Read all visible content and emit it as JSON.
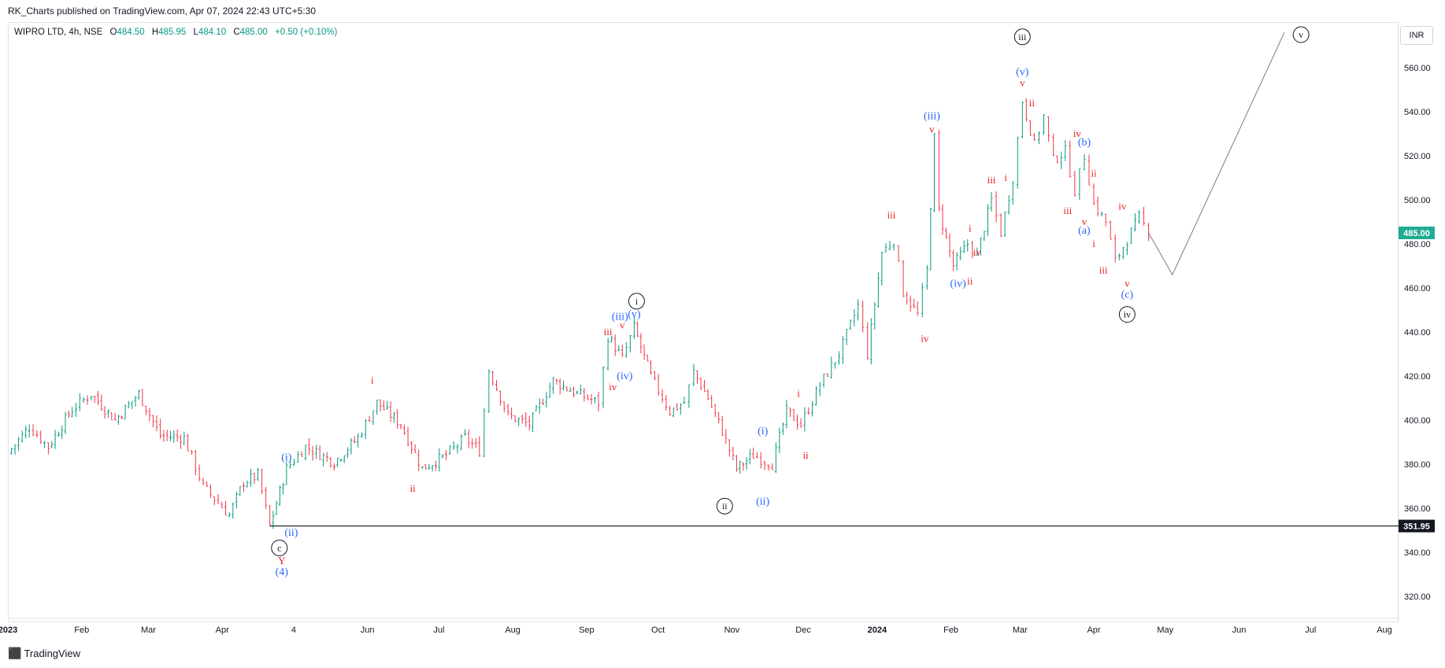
{
  "header": {
    "publisher": "RK_Charts published on TradingView.com, Apr 07, 2024 22:43 UTC+5:30"
  },
  "symbol": {
    "name": "WIPRO LTD, 4h, NSE",
    "open_label": "O",
    "open": "484.50",
    "high_label": "H",
    "high": "485.95",
    "low_label": "L",
    "low": "484.10",
    "close_label": "C",
    "close": "485.00",
    "change": "+0.50 (+0.10%)"
  },
  "currency": "INR",
  "footer": {
    "brand": "TradingView",
    "logo_icon": "tradingview-logo-icon"
  },
  "colors": {
    "up": "#089981",
    "down": "#f23645",
    "wave_red": "#e91e1e",
    "wave_blue": "#2962ff",
    "wave_black": "#131722",
    "last_price_bg": "#22ab94",
    "support_bg": "#131722"
  },
  "chart_data": {
    "type": "candlestick",
    "ylim": [
      310,
      580
    ],
    "y_ticks": [
      320,
      340,
      360,
      380,
      400,
      420,
      440,
      460,
      480,
      500,
      520,
      540,
      560
    ],
    "x_ticks": [
      {
        "date": "2023-01-01",
        "label": "2023",
        "bold": true
      },
      {
        "date": "2023-02-01",
        "label": "Feb"
      },
      {
        "date": "2023-03-01",
        "label": "Mar"
      },
      {
        "date": "2023-04-01",
        "label": "Apr"
      },
      {
        "date": "2023-05-01",
        "label": "4"
      },
      {
        "date": "2023-06-01",
        "label": "Jun"
      },
      {
        "date": "2023-07-01",
        "label": "Jul"
      },
      {
        "date": "2023-08-01",
        "label": "Aug"
      },
      {
        "date": "2023-09-01",
        "label": "Sep"
      },
      {
        "date": "2023-10-01",
        "label": "Oct"
      },
      {
        "date": "2023-11-01",
        "label": "Nov"
      },
      {
        "date": "2023-12-01",
        "label": "Dec"
      },
      {
        "date": "2024-01-01",
        "label": "2024",
        "bold": true
      },
      {
        "date": "2024-02-01",
        "label": "Feb"
      },
      {
        "date": "2024-03-01",
        "label": "Mar"
      },
      {
        "date": "2024-04-01",
        "label": "Apr"
      },
      {
        "date": "2024-05-01",
        "label": "May"
      },
      {
        "date": "2024-06-01",
        "label": "Jun"
      },
      {
        "date": "2024-07-01",
        "label": "Jul"
      },
      {
        "date": "2024-08-01",
        "label": "Aug"
      }
    ],
    "price_path": [
      [
        "2023-01-01",
        385
      ],
      [
        "2023-01-10",
        397
      ],
      [
        "2023-01-18",
        388
      ],
      [
        "2023-01-28",
        405
      ],
      [
        "2023-02-05",
        412
      ],
      [
        "2023-02-15",
        400
      ],
      [
        "2023-02-25",
        412
      ],
      [
        "2023-03-06",
        393
      ],
      [
        "2023-03-16",
        392
      ],
      [
        "2023-03-24",
        370
      ],
      [
        "2023-04-04",
        357
      ],
      [
        "2023-04-10",
        372
      ],
      [
        "2023-04-16",
        375
      ],
      [
        "2023-04-21",
        352
      ],
      [
        "2023-04-28",
        378
      ],
      [
        "2023-05-06",
        388
      ],
      [
        "2023-05-18",
        381
      ],
      [
        "2023-05-28",
        392
      ],
      [
        "2023-06-05",
        408
      ],
      [
        "2023-06-15",
        398
      ],
      [
        "2023-06-24",
        378
      ],
      [
        "2023-07-04",
        384
      ],
      [
        "2023-07-12",
        392
      ],
      [
        "2023-07-18",
        386
      ],
      [
        "2023-07-22",
        423
      ],
      [
        "2023-07-30",
        402
      ],
      [
        "2023-08-08",
        398
      ],
      [
        "2023-08-18",
        418
      ],
      [
        "2023-08-28",
        412
      ],
      [
        "2023-09-06",
        408
      ],
      [
        "2023-09-10",
        438
      ],
      [
        "2023-09-16",
        428
      ],
      [
        "2023-09-21",
        442
      ],
      [
        "2023-09-28",
        420
      ],
      [
        "2023-10-06",
        404
      ],
      [
        "2023-10-12",
        408
      ],
      [
        "2023-10-16",
        422
      ],
      [
        "2023-10-22",
        410
      ],
      [
        "2023-10-28",
        395
      ],
      [
        "2023-11-03",
        378
      ],
      [
        "2023-11-10",
        384
      ],
      [
        "2023-11-18",
        380
      ],
      [
        "2023-11-24",
        404
      ],
      [
        "2023-11-30",
        398
      ],
      [
        "2023-12-08",
        416
      ],
      [
        "2023-12-16",
        430
      ],
      [
        "2023-12-24",
        452
      ],
      [
        "2023-12-28",
        430
      ],
      [
        "2024-01-03",
        476
      ],
      [
        "2024-01-08",
        482
      ],
      [
        "2024-01-12",
        458
      ],
      [
        "2024-01-18",
        448
      ],
      [
        "2024-01-22",
        468
      ],
      [
        "2024-01-25",
        528
      ],
      [
        "2024-01-27",
        495
      ],
      [
        "2024-02-02",
        470
      ],
      [
        "2024-02-08",
        480
      ],
      [
        "2024-02-12",
        475
      ],
      [
        "2024-02-18",
        500
      ],
      [
        "2024-02-22",
        485
      ],
      [
        "2024-02-27",
        510
      ],
      [
        "2024-03-02",
        545
      ],
      [
        "2024-03-07",
        525
      ],
      [
        "2024-03-11",
        538
      ],
      [
        "2024-03-15",
        518
      ],
      [
        "2024-03-20",
        522
      ],
      [
        "2024-03-24",
        504
      ],
      [
        "2024-03-28",
        520
      ],
      [
        "2024-04-01",
        498
      ],
      [
        "2024-04-06",
        490
      ],
      [
        "2024-04-10",
        472
      ],
      [
        "2024-04-15",
        482
      ],
      [
        "2024-04-20",
        492
      ],
      [
        "2024-04-24",
        485
      ]
    ],
    "last_price": {
      "label": "485.00",
      "value": 485.0
    },
    "support_line": {
      "label": "351.95",
      "value": 351.95,
      "from": "2023-04-21"
    },
    "projection": [
      [
        "2024-04-24",
        485
      ],
      [
        "2024-05-04",
        466
      ],
      [
        "2024-06-20",
        576
      ]
    ],
    "annotations": [
      {
        "text": "i",
        "date": "2023-06-03",
        "price": 418,
        "color": "red"
      },
      {
        "text": "ii",
        "date": "2023-06-20",
        "price": 369,
        "color": "red"
      },
      {
        "text": "(i)",
        "date": "2023-04-28",
        "price": 383,
        "color": "blue"
      },
      {
        "text": "(ii)",
        "date": "2023-04-30",
        "price": 349,
        "color": "blue"
      },
      {
        "text": "c",
        "date": "2023-04-25",
        "price": 342,
        "color": "black",
        "circled": true
      },
      {
        "text": "Y",
        "date": "2023-04-26",
        "price": 336,
        "color": "red"
      },
      {
        "text": "(4)",
        "date": "2023-04-26",
        "price": 331,
        "color": "blue"
      },
      {
        "text": "iii",
        "date": "2023-09-10",
        "price": 440,
        "color": "red"
      },
      {
        "text": "(iii)",
        "date": "2023-09-15",
        "price": 447,
        "color": "blue"
      },
      {
        "text": "v",
        "date": "2023-09-16",
        "price": 443,
        "color": "red"
      },
      {
        "text": "(v)",
        "date": "2023-09-21",
        "price": 448,
        "color": "blue"
      },
      {
        "text": "i",
        "date": "2023-09-22",
        "price": 454,
        "color": "black",
        "circled": true
      },
      {
        "text": "(iv)",
        "date": "2023-09-17",
        "price": 420,
        "color": "blue"
      },
      {
        "text": "iv",
        "date": "2023-09-12",
        "price": 415,
        "color": "red"
      },
      {
        "text": "ii",
        "date": "2023-10-29",
        "price": 361,
        "color": "black",
        "circled": true
      },
      {
        "text": "(i)",
        "date": "2023-11-14",
        "price": 395,
        "color": "blue"
      },
      {
        "text": "(ii)",
        "date": "2023-11-14",
        "price": 363,
        "color": "blue"
      },
      {
        "text": "i",
        "date": "2023-11-29",
        "price": 412,
        "color": "red"
      },
      {
        "text": "ii",
        "date": "2023-12-02",
        "price": 384,
        "color": "red"
      },
      {
        "text": "iii",
        "date": "2024-01-07",
        "price": 493,
        "color": "red"
      },
      {
        "text": "iv",
        "date": "2024-01-21",
        "price": 437,
        "color": "red"
      },
      {
        "text": "(iii)",
        "date": "2024-01-24",
        "price": 538,
        "color": "blue"
      },
      {
        "text": "v",
        "date": "2024-01-24",
        "price": 532,
        "color": "red"
      },
      {
        "text": "(iv)",
        "date": "2024-02-04",
        "price": 462,
        "color": "blue"
      },
      {
        "text": "ii",
        "date": "2024-02-09",
        "price": 463,
        "color": "red"
      },
      {
        "text": "i",
        "date": "2024-02-09",
        "price": 487,
        "color": "red"
      },
      {
        "text": "iv",
        "date": "2024-02-12",
        "price": 476,
        "color": "red"
      },
      {
        "text": "iii",
        "date": "2024-02-18",
        "price": 509,
        "color": "red"
      },
      {
        "text": "i",
        "date": "2024-02-24",
        "price": 510,
        "color": "red"
      },
      {
        "text": "iii",
        "date": "2024-03-02",
        "price": 574,
        "color": "black",
        "circled": true
      },
      {
        "text": "(v)",
        "date": "2024-03-02",
        "price": 558,
        "color": "blue"
      },
      {
        "text": "v",
        "date": "2024-03-02",
        "price": 553,
        "color": "red"
      },
      {
        "text": "ii",
        "date": "2024-03-06",
        "price": 544,
        "color": "red"
      },
      {
        "text": "iv",
        "date": "2024-03-25",
        "price": 530,
        "color": "red"
      },
      {
        "text": "(b)",
        "date": "2024-03-28",
        "price": 526,
        "color": "blue"
      },
      {
        "text": "ii",
        "date": "2024-04-01",
        "price": 512,
        "color": "red"
      },
      {
        "text": "iii",
        "date": "2024-03-21",
        "price": 495,
        "color": "red"
      },
      {
        "text": "v",
        "date": "2024-03-28",
        "price": 490,
        "color": "red"
      },
      {
        "text": "(a)",
        "date": "2024-03-28",
        "price": 486,
        "color": "blue"
      },
      {
        "text": "i",
        "date": "2024-04-01",
        "price": 480,
        "color": "red"
      },
      {
        "text": "iii",
        "date": "2024-04-05",
        "price": 468,
        "color": "red"
      },
      {
        "text": "iv",
        "date": "2024-04-13",
        "price": 497,
        "color": "red"
      },
      {
        "text": "v",
        "date": "2024-04-15",
        "price": 462,
        "color": "red"
      },
      {
        "text": "(c)",
        "date": "2024-04-15",
        "price": 457,
        "color": "blue"
      },
      {
        "text": "iv",
        "date": "2024-04-15",
        "price": 448,
        "color": "black",
        "circled": true
      },
      {
        "text": "v",
        "date": "2024-06-27",
        "price": 575,
        "color": "black",
        "circled": true
      }
    ]
  }
}
